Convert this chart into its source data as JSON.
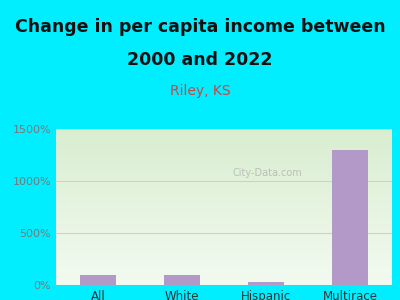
{
  "title_line1": "Change in per capita income between",
  "title_line2": "2000 and 2022",
  "subtitle": "Riley, KS",
  "categories": [
    "All",
    "White",
    "Hispanic",
    "Multirace"
  ],
  "values": [
    100,
    100,
    30,
    1300
  ],
  "bar_color": "#b399c8",
  "title_fontsize": 12.5,
  "subtitle_fontsize": 10,
  "subtitle_color": "#cc4444",
  "tick_label_color": "#777777",
  "background_color": "#00eeff",
  "plot_bg_top": "#d8edd0",
  "plot_bg_bottom": "#f2faf0",
  "ylim": [
    0,
    1500
  ],
  "yticks": [
    0,
    500,
    1000,
    1500
  ],
  "ytick_labels": [
    "0%",
    "500%",
    "1000%",
    "1500%"
  ],
  "grid_color": "#ffbbbb",
  "watermark": "City-Data.com",
  "bar_width": 0.42
}
